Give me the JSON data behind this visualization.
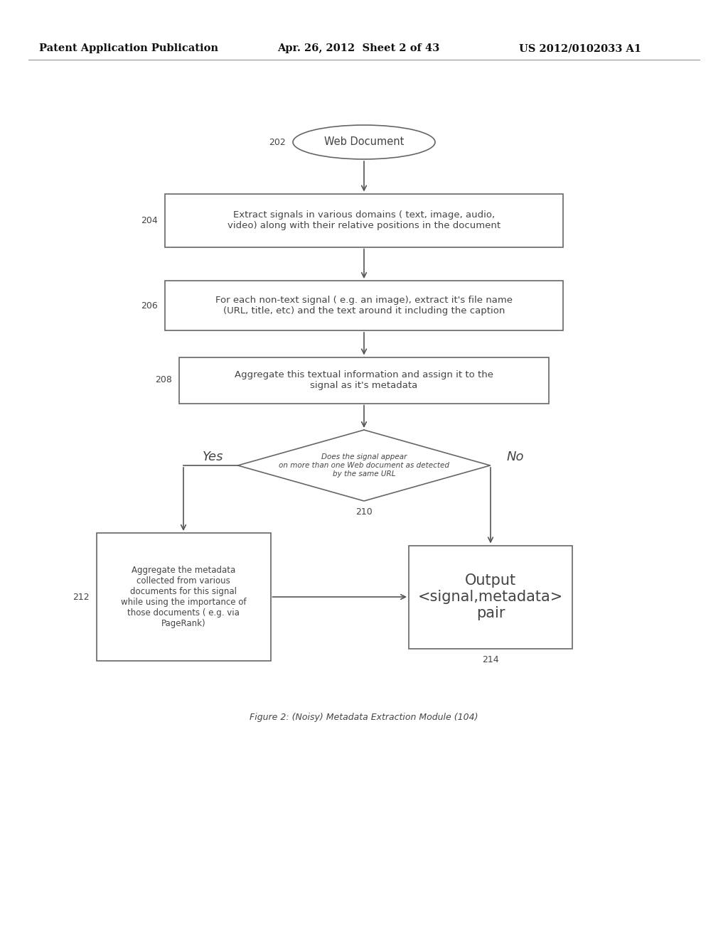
{
  "header_left": "Patent Application Publication",
  "header_mid": "Apr. 26, 2012  Sheet 2 of 43",
  "header_right": "US 2012/0102033 A1",
  "node_202_label": "Web Document",
  "node_204_label": "Extract signals in various domains ( text, image, audio,\nvideo) along with their relative positions in the document",
  "node_206_label": "For each non-text signal ( e.g. an image), extract it's file name\n(URL, title, etc) and the text around it including the caption",
  "node_208_label": "Aggregate this textual information and assign it to the\nsignal as it's metadata",
  "node_210_label": "Does the signal appear\non more than one Web document as detected\nby the same URL",
  "node_212_label": "Aggregate the metadata\ncollected from various\ndocuments for this signal\nwhile using the importance of\nthose documents ( e.g. via\nPageRank)",
  "node_214_label": "Output\n<signal,metadata>\npair",
  "label_202": "202",
  "label_204": "204",
  "label_206": "206",
  "label_208": "208",
  "label_210": "210",
  "label_212": "212",
  "label_214": "214",
  "yes_label": "Yes",
  "no_label": "No",
  "caption": "Figure 2: (Noisy) Metadata Extraction Module (104)",
  "bg_color": "#ffffff",
  "box_edge_color": "#666666",
  "text_color": "#444444",
  "arrow_color": "#555555",
  "header_color": "#111111"
}
